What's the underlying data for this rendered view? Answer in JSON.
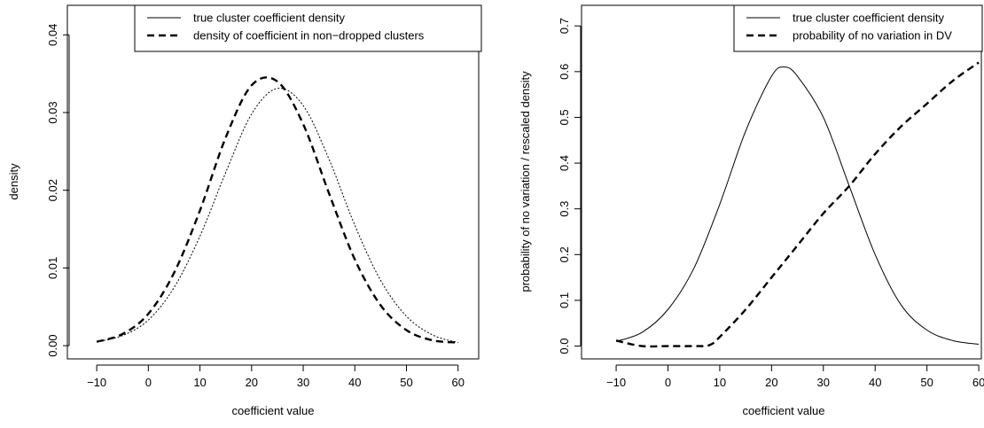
{
  "chart_data": [
    {
      "type": "line",
      "xlabel": "coefficient value",
      "ylabel": "density",
      "xlim": [
        -10,
        60
      ],
      "ylim": [
        0,
        0.043
      ],
      "x_ticks": [
        -10,
        0,
        10,
        20,
        30,
        40,
        50,
        60
      ],
      "y_ticks": [
        0.0,
        0.01,
        0.02,
        0.03,
        0.04
      ],
      "x_tick_labels": [
        "−10",
        "0",
        "10",
        "20",
        "30",
        "40",
        "50",
        "60"
      ],
      "y_tick_labels": [
        "0.00",
        "0.01",
        "0.02",
        "0.03",
        "0.04"
      ],
      "grid": false,
      "legend_position": "top-right",
      "series": [
        {
          "name": "true cluster coefficient density",
          "style": "thin-dotted",
          "color": "#000000",
          "x": [
            -10,
            -5,
            0,
            5,
            10,
            15,
            20,
            25,
            30,
            35,
            40,
            45,
            50,
            55,
            60
          ],
          "y": [
            0.0005,
            0.0013,
            0.0033,
            0.0075,
            0.0141,
            0.0223,
            0.0298,
            0.0331,
            0.0309,
            0.024,
            0.0155,
            0.0084,
            0.0038,
            0.0014,
            0.0004
          ]
        },
        {
          "name": "density of coefficient in non−dropped clusters",
          "style": "thick-dashed",
          "color": "#000000",
          "x": [
            -10,
            -5,
            0,
            5,
            10,
            15,
            20,
            25,
            30,
            35,
            40,
            45,
            50,
            55,
            60
          ],
          "y": [
            0.0005,
            0.0015,
            0.0041,
            0.0094,
            0.0174,
            0.0268,
            0.0335,
            0.034,
            0.0285,
            0.0196,
            0.0111,
            0.0052,
            0.002,
            0.0007,
            0.0004
          ]
        }
      ]
    },
    {
      "type": "line",
      "xlabel": "coefficient value",
      "ylabel": "probability of no variation / rescaled density",
      "xlim": [
        -10,
        60
      ],
      "ylim": [
        0,
        0.72
      ],
      "x_ticks": [
        -10,
        0,
        10,
        20,
        30,
        40,
        50,
        60
      ],
      "y_ticks": [
        0.0,
        0.1,
        0.2,
        0.3,
        0.4,
        0.5,
        0.6,
        0.7
      ],
      "x_tick_labels": [
        "−10",
        "0",
        "10",
        "20",
        "30",
        "40",
        "50",
        "60"
      ],
      "y_tick_labels": [
        "0.0",
        "0.1",
        "0.2",
        "0.3",
        "0.4",
        "0.5",
        "0.6",
        "0.7"
      ],
      "grid": false,
      "legend_position": "top-right",
      "series": [
        {
          "name": "true cluster coefficient density",
          "style": "solid",
          "color": "#000000",
          "x": [
            -10,
            -5,
            0,
            5,
            10,
            15,
            20,
            22.5,
            25,
            30,
            35,
            40,
            45,
            50,
            55,
            60
          ],
          "y": [
            0.01,
            0.03,
            0.08,
            0.17,
            0.31,
            0.47,
            0.59,
            0.61,
            0.59,
            0.5,
            0.35,
            0.2,
            0.09,
            0.035,
            0.012,
            0.004
          ]
        },
        {
          "name": "probability of no variation in DV",
          "style": "thick-dashed",
          "color": "#000000",
          "x": [
            -10,
            -5,
            0,
            5,
            8,
            10,
            15,
            20,
            25,
            30,
            35,
            40,
            45,
            50,
            55,
            60
          ],
          "y": [
            0.012,
            0.0,
            0.0,
            0.0,
            0.002,
            0.02,
            0.08,
            0.15,
            0.22,
            0.29,
            0.35,
            0.42,
            0.48,
            0.53,
            0.58,
            0.62
          ]
        }
      ]
    }
  ]
}
